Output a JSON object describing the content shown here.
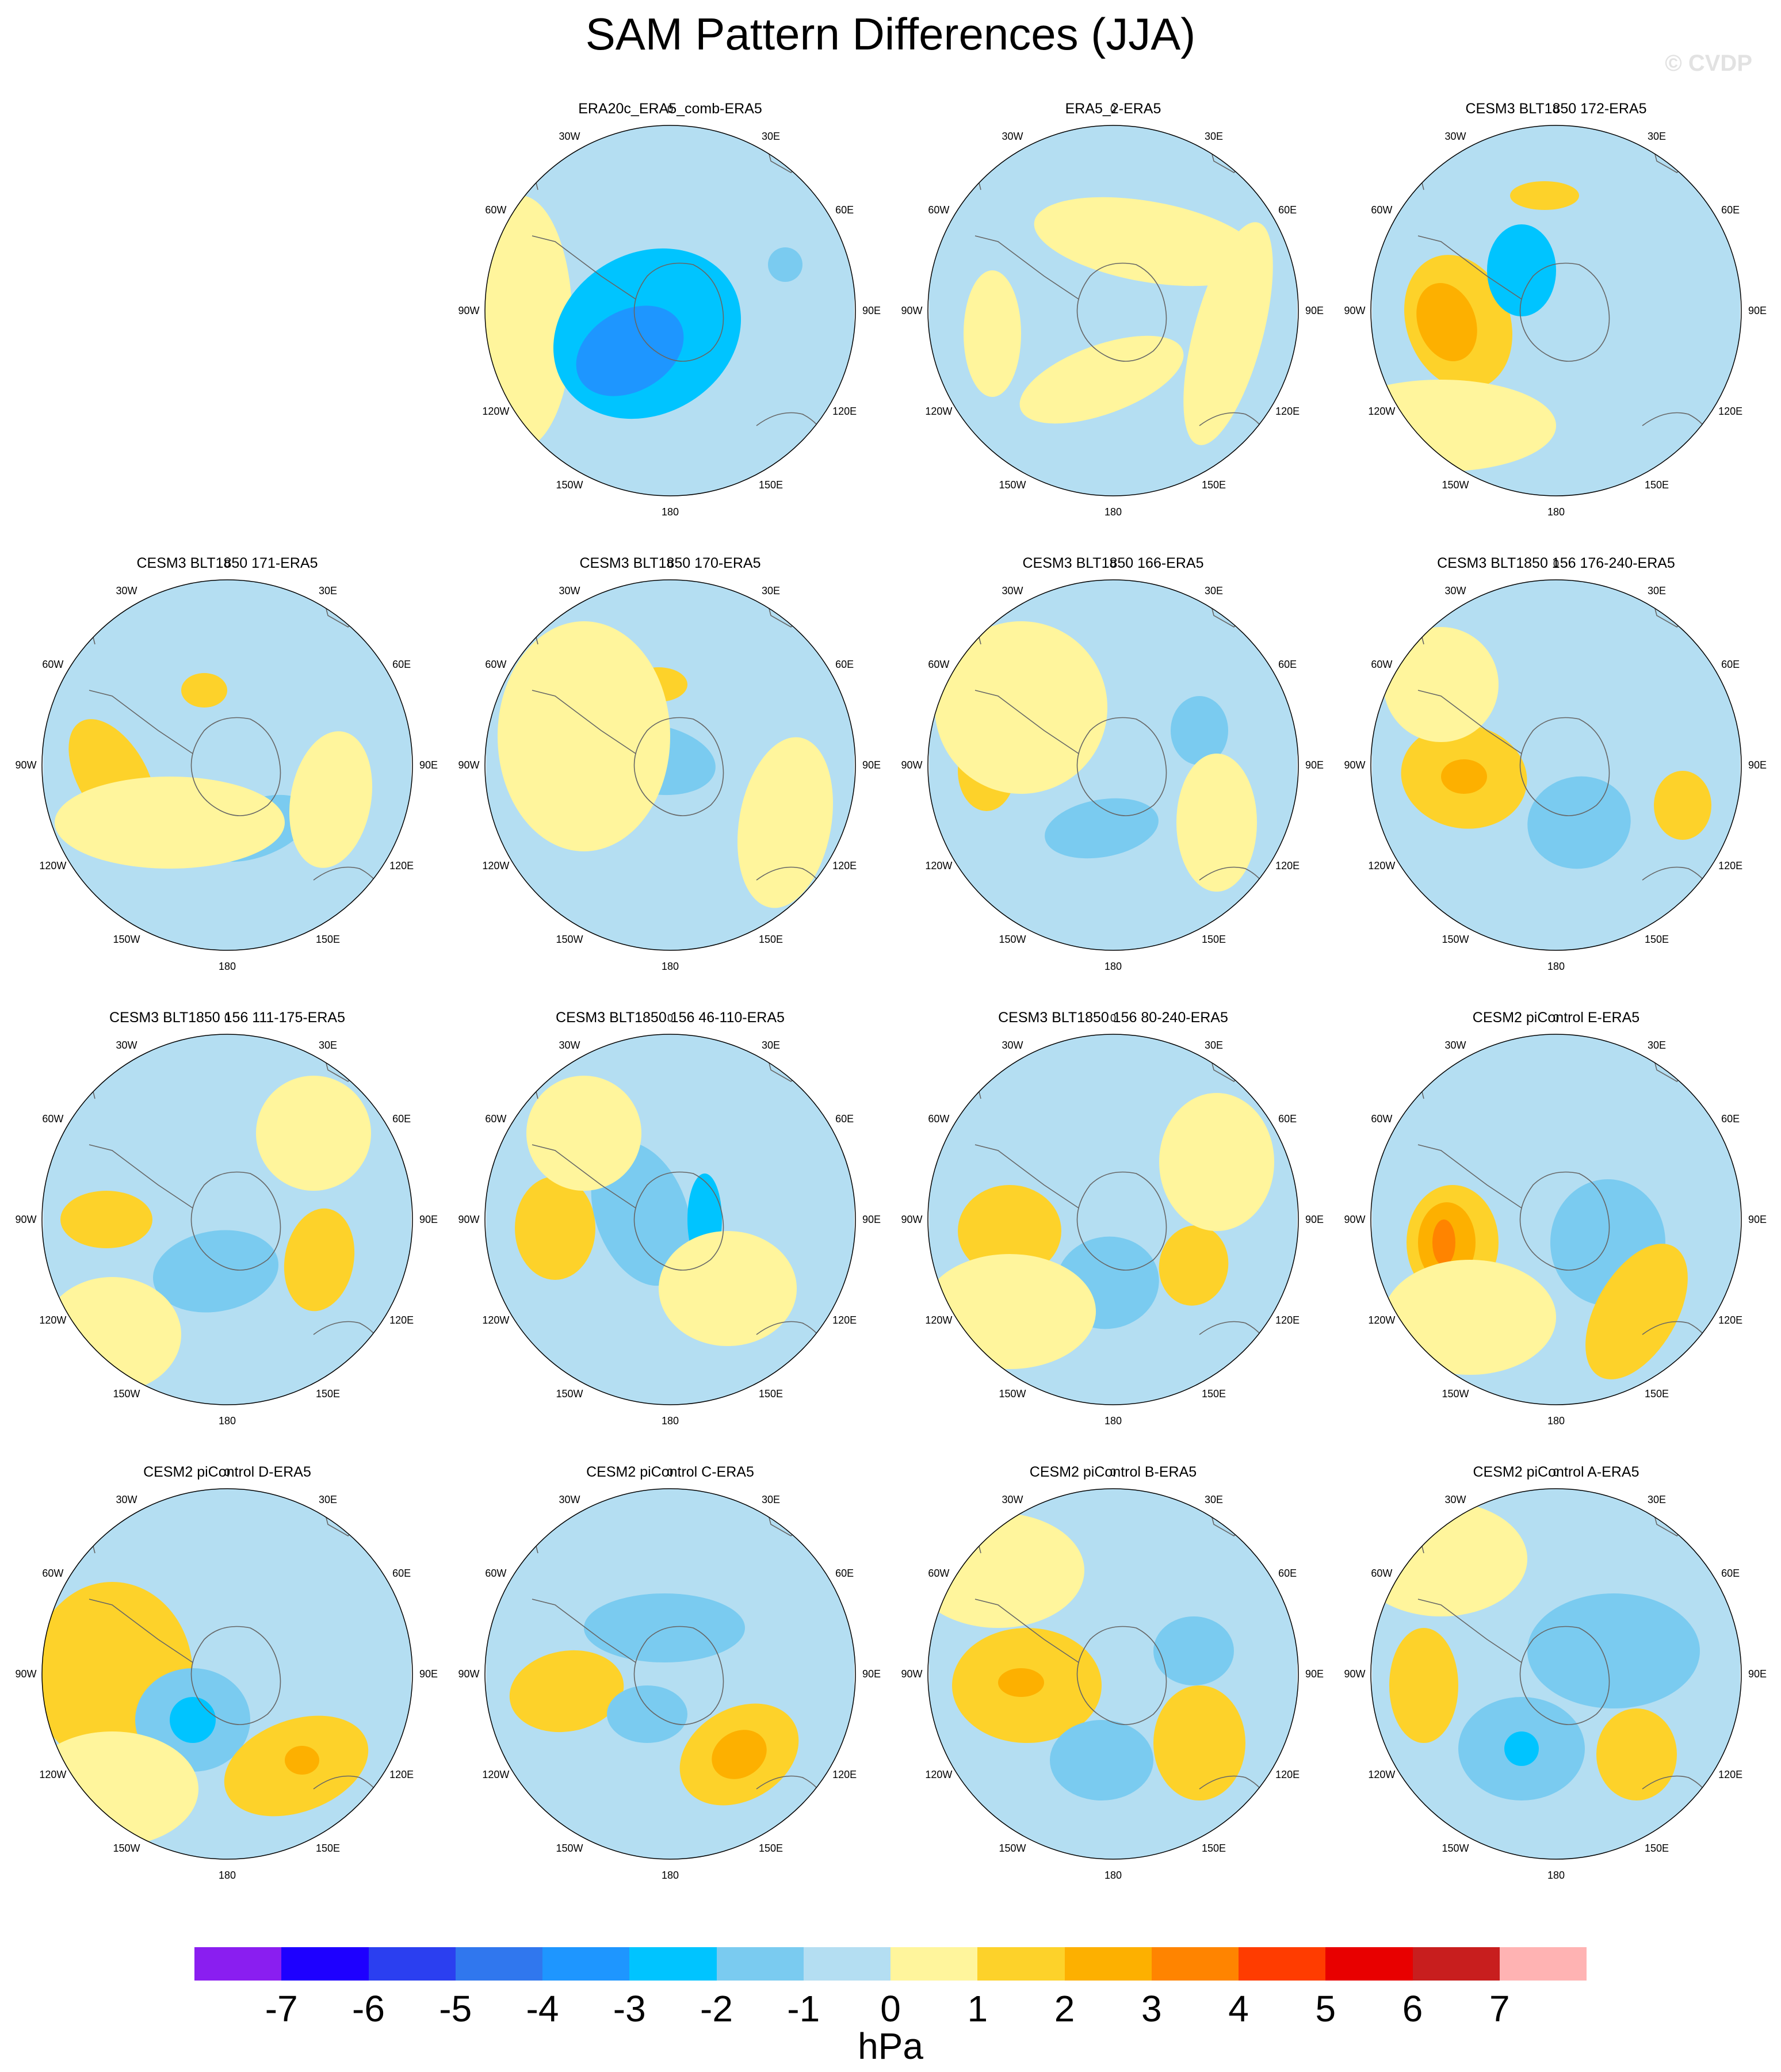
{
  "title": "SAM Pattern Differences (JJA)",
  "watermark": "© CVDP",
  "lon_labels": [
    "0",
    "30E",
    "60E",
    "90E",
    "120E",
    "150E",
    "180",
    "150W",
    "120W",
    "90W",
    "60W",
    "30W"
  ],
  "colorbar": {
    "units": "hPa",
    "ticks": [
      "-7",
      "-6",
      "-5",
      "-4",
      "-3",
      "-2",
      "-1",
      "0",
      "1",
      "2",
      "3",
      "4",
      "5",
      "6",
      "7"
    ],
    "colors": [
      "#8a1ef0",
      "#1e00ff",
      "#2b3ff0",
      "#3077ee",
      "#1e96ff",
      "#00c4ff",
      "#7acbf0",
      "#b4def2",
      "#fff59c",
      "#fdd22a",
      "#fdb000",
      "#ff8400",
      "#ff3c00",
      "#e80000",
      "#c81e1e",
      "#ffb3b3"
    ]
  },
  "panels": [
    {
      "title": "ERA20c_ERA5_comb-ERA5"
    },
    {
      "title": "ERA5_2-ERA5"
    },
    {
      "title": "CESM3 BLT1850 172-ERA5"
    },
    {
      "title": "CESM3 BLT1850 171-ERA5"
    },
    {
      "title": "CESM3 BLT1850 170-ERA5"
    },
    {
      "title": "CESM3 BLT1850 166-ERA5"
    },
    {
      "title": "CESM3 BLT1850 156 176-240-ERA5"
    },
    {
      "title": "CESM3 BLT1850 156 111-175-ERA5"
    },
    {
      "title": "CESM3 BLT1850 156 46-110-ERA5"
    },
    {
      "title": "CESM3 BLT1850 156 80-240-ERA5"
    },
    {
      "title": "CESM2 piControl E-ERA5"
    },
    {
      "title": "CESM2 piControl D-ERA5"
    },
    {
      "title": "CESM2 piControl C-ERA5"
    },
    {
      "title": "CESM2 piControl B-ERA5"
    },
    {
      "title": "CESM2 piControl A-ERA5"
    }
  ]
}
